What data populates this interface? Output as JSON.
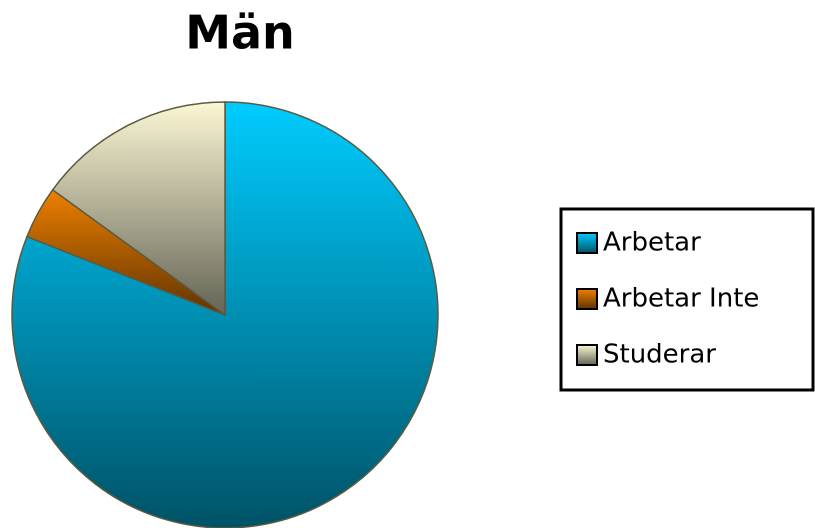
{
  "chart_data": {
    "type": "pie",
    "title": "Män",
    "categories": [
      "Arbetar",
      "Arbetar Inte",
      "Studerar"
    ],
    "values": [
      81,
      4,
      15
    ],
    "colors": [
      "#00ccff",
      "#ee8000",
      "#fbf7d4"
    ],
    "legend": "right"
  }
}
